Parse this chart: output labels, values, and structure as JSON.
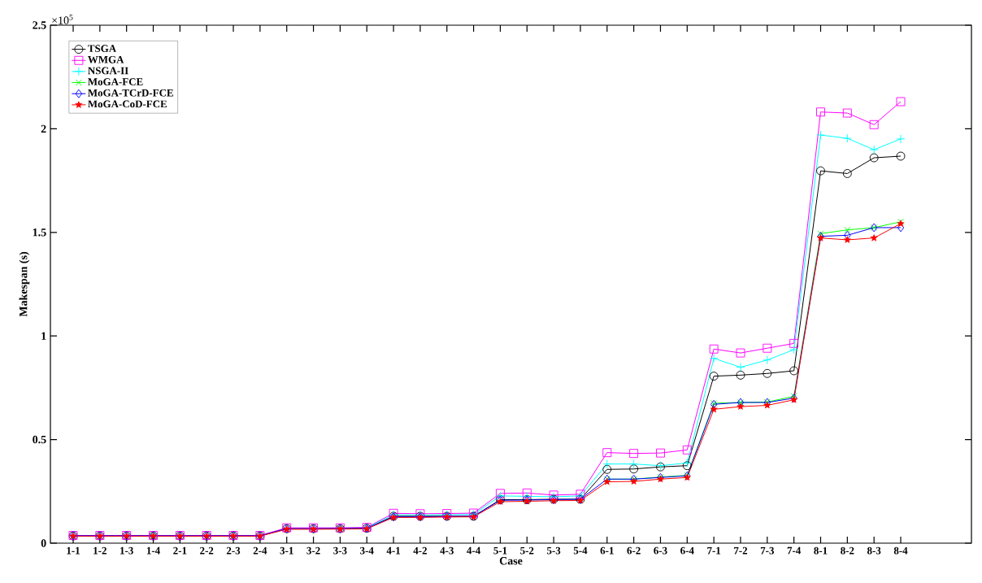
{
  "chart_data": {
    "type": "line",
    "xlabel": "Case",
    "ylabel": "Makespan (s)",
    "annotations": [
      "×10$^{5}$"
    ],
    "categories": [
      "1-1",
      "1-2",
      "1-3",
      "1-4",
      "2-1",
      "2-2",
      "2-3",
      "2-4",
      "3-1",
      "3-2",
      "3-3",
      "3-4",
      "4-1",
      "4-2",
      "4-3",
      "4-4",
      "5-1",
      "5-2",
      "5-3",
      "5-4",
      "6-1",
      "6-2",
      "6-3",
      "6-4",
      "7-1",
      "7-2",
      "7-3",
      "7-4",
      "8-1",
      "8-2",
      "8-3",
      "8-4"
    ],
    "ylim": [
      0,
      2.5
    ],
    "yticks": [
      0,
      0.5,
      1,
      1.5,
      2,
      2.5
    ],
    "legend": "top left",
    "line_style": "solid",
    "series": [
      {
        "name": "TSGA",
        "color": "#000000",
        "marker": "circle",
        "values": [
          0.035,
          0.035,
          0.035,
          0.035,
          0.035,
          0.035,
          0.035,
          0.035,
          0.07,
          0.07,
          0.07,
          0.072,
          0.13,
          0.13,
          0.13,
          0.13,
          0.21,
          0.21,
          0.212,
          0.212,
          0.356,
          0.358,
          0.368,
          0.374,
          0.806,
          0.811,
          0.819,
          0.832,
          1.797,
          1.784,
          1.86,
          1.868
        ]
      },
      {
        "name": "WMGA",
        "color": "#ff00ff",
        "marker": "square",
        "values": [
          0.037,
          0.037,
          0.037,
          0.037,
          0.037,
          0.037,
          0.037,
          0.037,
          0.074,
          0.074,
          0.074,
          0.076,
          0.144,
          0.142,
          0.143,
          0.145,
          0.24,
          0.242,
          0.232,
          0.236,
          0.437,
          0.433,
          0.435,
          0.45,
          0.937,
          0.918,
          0.941,
          0.964,
          2.081,
          2.076,
          2.02,
          2.131
        ]
      },
      {
        "name": "NSGA-II",
        "color": "#00ffff",
        "marker": "plus",
        "values": [
          null,
          null,
          null,
          null,
          null,
          null,
          null,
          null,
          null,
          null,
          null,
          0.074,
          0.137,
          0.136,
          0.137,
          0.139,
          0.228,
          0.226,
          0.224,
          0.228,
          0.382,
          0.382,
          0.374,
          0.387,
          0.892,
          0.849,
          0.884,
          0.934,
          1.97,
          1.954,
          1.899,
          1.951
        ]
      },
      {
        "name": "MoGA-FCE",
        "color": "#00ff00",
        "marker": "cross",
        "values": [
          null,
          null,
          null,
          0.035,
          null,
          null,
          null,
          null,
          null,
          null,
          0.07,
          null,
          null,
          null,
          null,
          null,
          null,
          null,
          null,
          null,
          0.309,
          0.309,
          0.319,
          0.327,
          0.675,
          0.679,
          0.681,
          0.709,
          1.494,
          1.512,
          1.523,
          1.551
        ]
      },
      {
        "name": "MoGA-TCrD-FCE",
        "color": "#0000ff",
        "marker": "diamond",
        "values": [
          0.036,
          0.036,
          0.036,
          0.036,
          0.036,
          0.036,
          0.036,
          0.036,
          0.07,
          0.07,
          0.071,
          0.072,
          0.127,
          0.127,
          0.129,
          0.13,
          0.207,
          0.208,
          0.21,
          0.212,
          0.309,
          0.309,
          0.317,
          0.325,
          0.67,
          0.679,
          0.679,
          0.7,
          1.481,
          1.486,
          1.523,
          1.523
        ]
      },
      {
        "name": "MoGA-CoD-FCE",
        "color": "#ff0000",
        "marker": "star",
        "values": [
          0.034,
          0.034,
          0.034,
          0.034,
          0.034,
          0.034,
          0.034,
          0.034,
          0.067,
          0.067,
          0.068,
          0.069,
          0.124,
          0.124,
          0.126,
          0.127,
          0.2,
          0.202,
          0.205,
          0.206,
          0.296,
          0.298,
          0.309,
          0.317,
          0.646,
          0.659,
          0.665,
          0.692,
          1.473,
          1.464,
          1.473,
          1.542
        ]
      }
    ]
  }
}
